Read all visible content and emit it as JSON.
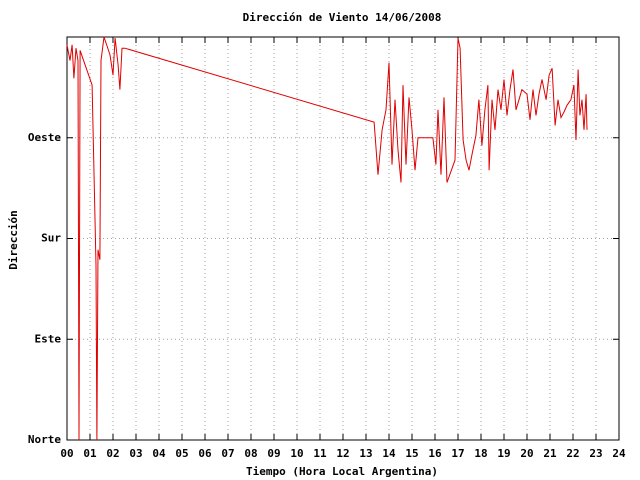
{
  "chart_data": {
    "type": "line",
    "title": "Dirección de Viento 14/06/2008",
    "x_label": "Tiempo (Hora Local Argentina)",
    "y_label": "Dirección",
    "xlim": [
      0,
      24
    ],
    "ylim": [
      0,
      360
    ],
    "xticks": [
      {
        "value": 0,
        "label": "00"
      },
      {
        "value": 1,
        "label": "01"
      },
      {
        "value": 2,
        "label": "02"
      },
      {
        "value": 3,
        "label": "03"
      },
      {
        "value": 4,
        "label": "04"
      },
      {
        "value": 5,
        "label": "05"
      },
      {
        "value": 6,
        "label": "06"
      },
      {
        "value": 7,
        "label": "07"
      },
      {
        "value": 8,
        "label": "08"
      },
      {
        "value": 9,
        "label": "09"
      },
      10,
      11,
      12,
      13,
      14,
      15,
      16,
      17,
      18,
      19,
      20,
      21,
      22,
      23,
      24
    ],
    "yticks": [
      {
        "value": 0,
        "label": "Norte"
      },
      {
        "value": 90,
        "label": "Este"
      },
      {
        "value": 180,
        "label": "Sur"
      },
      {
        "value": 270,
        "label": "Oeste"
      }
    ],
    "grid": true,
    "color": "#e00000",
    "x": [
      0,
      0.13,
      0.22,
      0.3,
      0.39,
      0.48,
      0.52,
      0.57,
      1.09,
      1.26,
      1.3,
      1.35,
      1.43,
      1.48,
      1.61,
      1.87,
      2.0,
      2.09,
      2.22,
      2.3,
      2.39,
      2.52,
      13.35,
      13.52,
      13.7,
      13.87,
      14.0,
      14.13,
      14.26,
      14.39,
      14.52,
      14.61,
      14.74,
      14.87,
      15.0,
      15.13,
      15.26,
      15.39,
      15.91,
      16.04,
      16.13,
      16.26,
      16.39,
      16.52,
      16.87,
      17.0,
      17.09,
      17.22,
      17.35,
      17.48,
      17.61,
      17.78,
      17.91,
      18.04,
      18.17,
      18.3,
      18.35,
      18.48,
      18.61,
      18.74,
      18.87,
      19.0,
      19.13,
      19.26,
      19.39,
      19.52,
      19.65,
      19.78,
      20.0,
      20.13,
      20.26,
      20.39,
      20.52,
      20.65,
      20.83,
      20.96,
      21.09,
      21.22,
      21.35,
      21.48,
      21.61,
      21.74,
      21.91,
      22.04,
      22.13,
      22.22,
      22.3,
      22.39,
      22.48,
      22.57,
      22.61
    ],
    "values": [
      353,
      339,
      353,
      323,
      350,
      339,
      0,
      348,
      317,
      156,
      0,
      170,
      161,
      339,
      360,
      344,
      326,
      359,
      335,
      313,
      350,
      350,
      284,
      237,
      277,
      295,
      337,
      246,
      304,
      259,
      230,
      317,
      246,
      306,
      277,
      241,
      270,
      270,
      270,
      246,
      295,
      237,
      306,
      230,
      250,
      359,
      350,
      268,
      250,
      241,
      255,
      272,
      304,
      263,
      295,
      317,
      241,
      304,
      277,
      313,
      295,
      322,
      290,
      313,
      331,
      295,
      304,
      313,
      309,
      286,
      313,
      290,
      309,
      322,
      304,
      326,
      332,
      281,
      304,
      288,
      293,
      299,
      304,
      317,
      268,
      331,
      290,
      304,
      277,
      309,
      277
    ]
  }
}
